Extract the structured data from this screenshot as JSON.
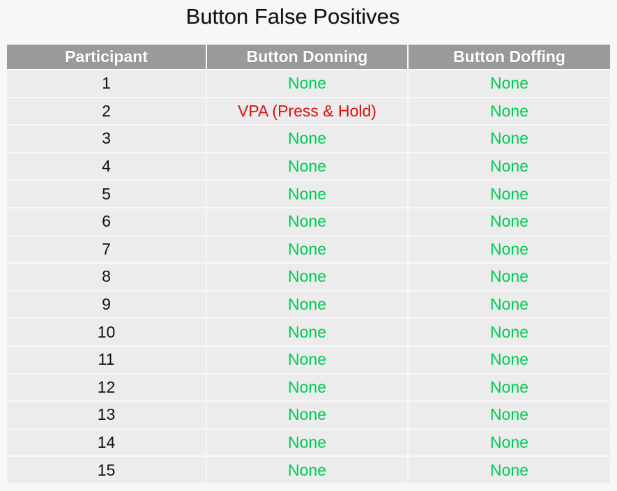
{
  "chart_data": {
    "type": "table",
    "title": "Button False Positives",
    "columns": [
      "Participant",
      "Button Donning",
      "Button Doffing"
    ],
    "rows": [
      {
        "participant": "1",
        "donning": "None",
        "doffing": "None"
      },
      {
        "participant": "2",
        "donning": "VPA (Press & Hold)",
        "doffing": "None"
      },
      {
        "participant": "3",
        "donning": "None",
        "doffing": "None"
      },
      {
        "participant": "4",
        "donning": "None",
        "doffing": "None"
      },
      {
        "participant": "5",
        "donning": "None",
        "doffing": "None"
      },
      {
        "participant": "6",
        "donning": "None",
        "doffing": "None"
      },
      {
        "participant": "7",
        "donning": "None",
        "doffing": "None"
      },
      {
        "participant": "8",
        "donning": "None",
        "doffing": "None"
      },
      {
        "participant": "9",
        "donning": "None",
        "doffing": "None"
      },
      {
        "participant": "10",
        "donning": "None",
        "doffing": "None"
      },
      {
        "participant": "11",
        "donning": "None",
        "doffing": "None"
      },
      {
        "participant": "12",
        "donning": "None",
        "doffing": "None"
      },
      {
        "participant": "13",
        "donning": "None",
        "doffing": "None"
      },
      {
        "participant": "14",
        "donning": "None",
        "doffing": "None"
      },
      {
        "participant": "15",
        "donning": "None",
        "doffing": "None"
      }
    ],
    "colors": {
      "none_value": "#00cc55",
      "false_positive_value": "#dd1111",
      "header_background": "#9a9a9a",
      "cell_background": "#ececec"
    }
  }
}
